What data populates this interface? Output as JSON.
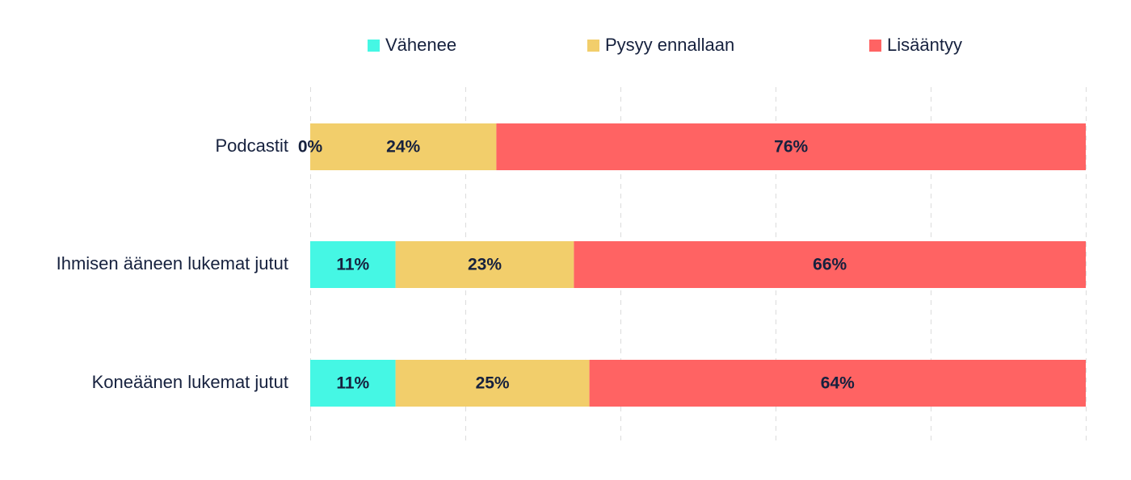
{
  "chart_data": {
    "type": "bar",
    "orientation": "horizontal",
    "stacked": true,
    "categories": [
      "Podcastit",
      "Ihmisen ääneen lukemat jutut",
      "Koneäänen lukemat jutut"
    ],
    "series": [
      {
        "name": "Vähenee",
        "color": "#45f7e4",
        "values": [
          0,
          11,
          11
        ],
        "labels": [
          "0%",
          "11%",
          "11%"
        ]
      },
      {
        "name": "Pysyy ennallaan",
        "color": "#f2ce6b",
        "values": [
          24,
          23,
          25
        ],
        "labels": [
          "24%",
          "23%",
          "25%"
        ]
      },
      {
        "name": "Lisääntyy",
        "color": "#ff6363",
        "values": [
          76,
          66,
          64
        ],
        "labels": [
          "76%",
          "66%",
          "64%"
        ]
      }
    ],
    "xlim": [
      0,
      100
    ],
    "grid": true,
    "legend_position": "top",
    "title": "",
    "xlabel": "",
    "ylabel": ""
  }
}
